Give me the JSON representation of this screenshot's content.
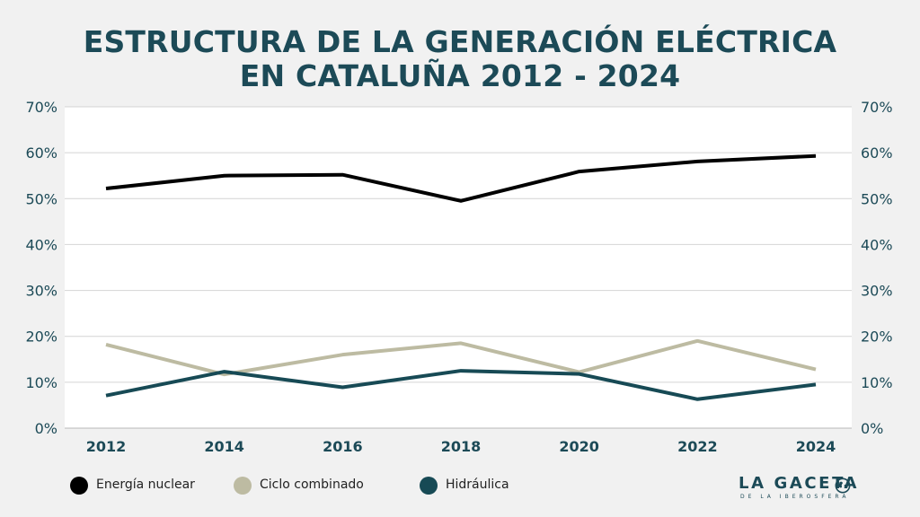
{
  "title_lines": [
    "ESTRUCTURA DE LA GENERACIÓN ELÉCTRICA",
    "EN CATALUÑA 2012 - 2024"
  ],
  "brand": {
    "name": "LA GACETA",
    "tagline": "DE LA IBEROSFERA",
    "icon": "globe-icon"
  },
  "colors": {
    "text": "#1c4a57",
    "background": "#f1f1f1",
    "grid": "#d4d4d4"
  },
  "chart_data": {
    "type": "line",
    "title": "ESTRUCTURA DE LA GENERACIÓN ELÉCTRICA EN CATALUÑA 2012 - 2024",
    "x": [
      2012,
      2014,
      2016,
      2018,
      2020,
      2022,
      2024
    ],
    "x_tick_labels": [
      "2012",
      "2014",
      "2016",
      "2018",
      "2020",
      "2022",
      "2024"
    ],
    "ylim": [
      0,
      70
    ],
    "y_ticks": [
      0,
      10,
      20,
      30,
      40,
      50,
      60,
      70
    ],
    "y_tick_labels": [
      "0%",
      "10%",
      "20%",
      "30%",
      "40%",
      "50%",
      "60%",
      "70%"
    ],
    "y_axes": "left and right (duplicate)",
    "grid": true,
    "legend_position": "bottom-left",
    "series": [
      {
        "name": "Energía nuclear",
        "color": "#000000",
        "values": [
          52.2,
          55.0,
          55.2,
          49.5,
          55.9,
          58.1,
          59.3
        ]
      },
      {
        "name": "Ciclo combinado",
        "color": "#bdbba2",
        "values": [
          18.2,
          11.7,
          16.0,
          18.5,
          12.2,
          19.0,
          12.8
        ]
      },
      {
        "name": "Hidráulica",
        "color": "#174a55",
        "values": [
          7.1,
          12.3,
          8.9,
          12.5,
          11.8,
          6.3,
          9.5
        ]
      }
    ]
  }
}
